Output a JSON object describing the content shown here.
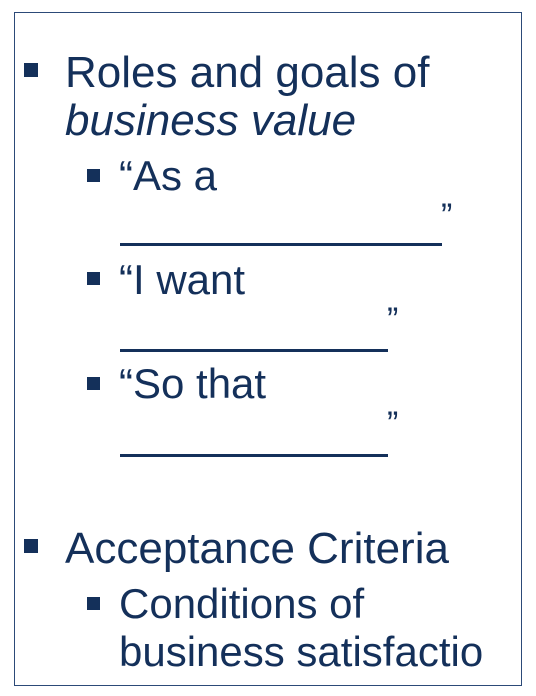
{
  "slide": {
    "items": [
      {
        "line1": "Roles and goals of",
        "line2": "business value",
        "subitems": [
          {
            "text": "“As a",
            "close_quote": "”"
          },
          {
            "text": "“I want",
            "close_quote": "”"
          },
          {
            "text": "“So that",
            "close_quote": "”"
          }
        ]
      },
      {
        "line1": "Acceptance Criteria",
        "subitems": [
          {
            "line1": "Conditions of",
            "line2": "business satisfactio"
          }
        ]
      }
    ]
  },
  "colors": {
    "text": "#14305a",
    "border": "#2c4a78",
    "background": "#ffffff"
  },
  "icons": {
    "bullet": "square-bullet-icon"
  }
}
